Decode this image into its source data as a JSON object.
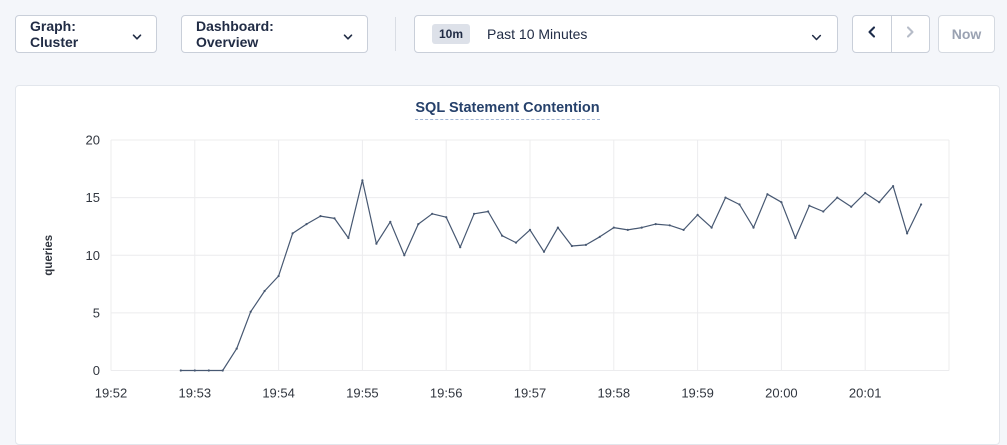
{
  "toolbar": {
    "graph_dropdown": {
      "label": "Graph: Cluster"
    },
    "dashboard_dropdown": {
      "label": "Dashboard: Overview"
    },
    "time_picker": {
      "badge": "10m",
      "label": "Past 10 Minutes"
    },
    "now_button": {
      "label": "Now"
    }
  },
  "colors": {
    "page_bg": "#f4f6fa",
    "card_bg": "#ffffff",
    "line": "#475872",
    "grid": "#ececee",
    "axis_text": "#31363f",
    "title_text": "#26416b",
    "enabled_arrow": "#1c2b4a",
    "disabled_arrow": "#b6bcc8"
  },
  "chart_data": {
    "type": "line",
    "title": "SQL Statement Contention",
    "ylabel": "queries",
    "xlabel": "",
    "ylim": [
      0,
      20
    ],
    "yticks": [
      0,
      5,
      10,
      15,
      20
    ],
    "xticks": [
      "19:52",
      "19:53",
      "19:54",
      "19:55",
      "19:56",
      "19:57",
      "19:58",
      "19:59",
      "20:00",
      "20:01"
    ],
    "x_window_minutes": 10,
    "grid": true,
    "legend_position": "none",
    "series": [
      {
        "name": "queries",
        "color": "#475872",
        "points": [
          [
            50,
            0
          ],
          [
            60,
            0
          ],
          [
            70,
            0
          ],
          [
            80,
            0
          ],
          [
            90,
            1.9
          ],
          [
            100,
            5.1
          ],
          [
            110,
            6.9
          ],
          [
            120,
            8.2
          ],
          [
            130,
            11.9
          ],
          [
            140,
            12.7
          ],
          [
            150,
            13.4
          ],
          [
            160,
            13.2
          ],
          [
            170,
            11.5
          ],
          [
            180,
            16.5
          ],
          [
            190,
            11.0
          ],
          [
            200,
            12.9
          ],
          [
            210,
            10.0
          ],
          [
            220,
            12.7
          ],
          [
            230,
            13.6
          ],
          [
            240,
            13.3
          ],
          [
            250,
            10.7
          ],
          [
            260,
            13.6
          ],
          [
            270,
            13.8
          ],
          [
            280,
            11.7
          ],
          [
            290,
            11.1
          ],
          [
            300,
            12.2
          ],
          [
            310,
            10.3
          ],
          [
            320,
            12.4
          ],
          [
            330,
            10.8
          ],
          [
            340,
            10.9
          ],
          [
            350,
            11.6
          ],
          [
            360,
            12.4
          ],
          [
            370,
            12.2
          ],
          [
            380,
            12.4
          ],
          [
            390,
            12.7
          ],
          [
            400,
            12.6
          ],
          [
            410,
            12.2
          ],
          [
            420,
            13.5
          ],
          [
            430,
            12.4
          ],
          [
            440,
            15.0
          ],
          [
            450,
            14.4
          ],
          [
            460,
            12.4
          ],
          [
            470,
            15.3
          ],
          [
            480,
            14.6
          ],
          [
            490,
            11.5
          ],
          [
            500,
            14.3
          ],
          [
            510,
            13.8
          ],
          [
            520,
            15.0
          ],
          [
            530,
            14.2
          ],
          [
            540,
            15.4
          ],
          [
            550,
            14.6
          ],
          [
            560,
            16.0
          ],
          [
            570,
            11.9
          ],
          [
            580,
            14.4
          ]
        ]
      }
    ]
  }
}
